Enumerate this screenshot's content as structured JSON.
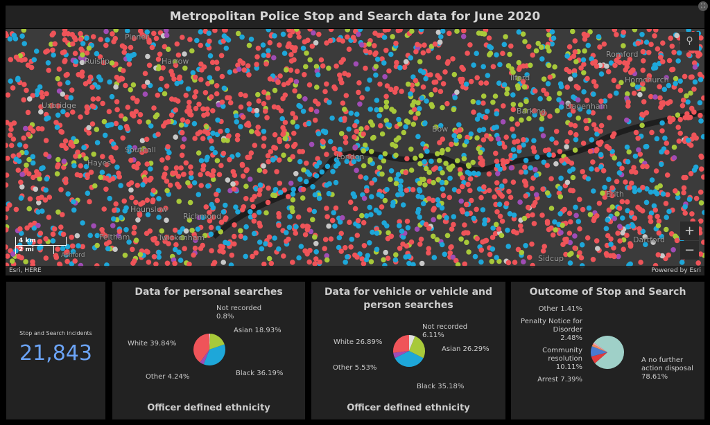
{
  "title": "Metropolitan Police Stop and Search data for June 2020",
  "map": {
    "places": [
      "Pinner",
      "Ruislip",
      "Harrow",
      "Uxbridge",
      "Southall",
      "Hayes",
      "Hounslow",
      "Richmond",
      "Twickenham",
      "Feltham",
      "London",
      "Bow",
      "Ilford",
      "Barking",
      "Dagenham",
      "Romford",
      "Hornchurch",
      "Erith",
      "Dartford",
      "Sidcup",
      "Ashford"
    ],
    "scale_km": "4 km",
    "scale_mi": "2 mi",
    "attribution": "Esri, HERE",
    "powered": "Powered by Esri",
    "search_icon": "search-icon",
    "zoom_in": "+",
    "zoom_out": "−",
    "dot_colors": [
      "#ef5459",
      "#1ea7d9",
      "#a8c93a",
      "#a04cb5",
      "#c8c8c8"
    ]
  },
  "indicator": {
    "label": "Stop and Search incidents",
    "value": "21,843",
    "color": "#6ba3f5"
  },
  "chart_data": [
    {
      "type": "pie",
      "title": "Data for personal searches",
      "xlabel": "Officer defined ethnicity",
      "slices": [
        {
          "name": "Not recorded",
          "value": 0.8,
          "label": "0.8%",
          "color": "#e0e0e0"
        },
        {
          "name": "Asian",
          "value": 18.93,
          "label": "18.93%",
          "color": "#a8c93a"
        },
        {
          "name": "Black",
          "value": 36.19,
          "label": "36.19%",
          "color": "#1ea7d9"
        },
        {
          "name": "Other",
          "value": 4.24,
          "label": "4.24%",
          "color": "#a04cb5"
        },
        {
          "name": "White",
          "value": 39.84,
          "label": "39.84%",
          "color": "#ef5459"
        }
      ]
    },
    {
      "type": "pie",
      "title": "Data for vehicle or vehicle and person searches",
      "xlabel": "Officer defined ethnicity",
      "slices": [
        {
          "name": "Not recorded",
          "value": 6.11,
          "label": "6.11%",
          "color": "#e0e0e0"
        },
        {
          "name": "Asian",
          "value": 26.29,
          "label": "26.29%",
          "color": "#a8c93a"
        },
        {
          "name": "Black",
          "value": 35.18,
          "label": "35.18%",
          "color": "#1ea7d9"
        },
        {
          "name": "Other",
          "value": 5.53,
          "label": "5.53%",
          "color": "#a04cb5"
        },
        {
          "name": "White",
          "value": 26.89,
          "label": "26.89%",
          "color": "#ef5459"
        }
      ]
    },
    {
      "type": "pie",
      "title": "Outcome of Stop and Search",
      "xlabel": "",
      "slices": [
        {
          "name": "A no further action disposal",
          "value": 78.61,
          "label": "78.61%",
          "color": "#9fd0c8"
        },
        {
          "name": "Arrest",
          "value": 7.39,
          "label": "7.39%",
          "color": "#e03a3a"
        },
        {
          "name": "Community resolution",
          "value": 10.11,
          "label": "10.11%",
          "color": "#4a7bd0"
        },
        {
          "name": "Penalty Notice for Disorder",
          "value": 2.48,
          "label": "2.48%",
          "color": "#f08a5d"
        },
        {
          "name": "Other",
          "value": 1.41,
          "label": "1.41%",
          "color": "#f4a6b8"
        }
      ]
    }
  ]
}
